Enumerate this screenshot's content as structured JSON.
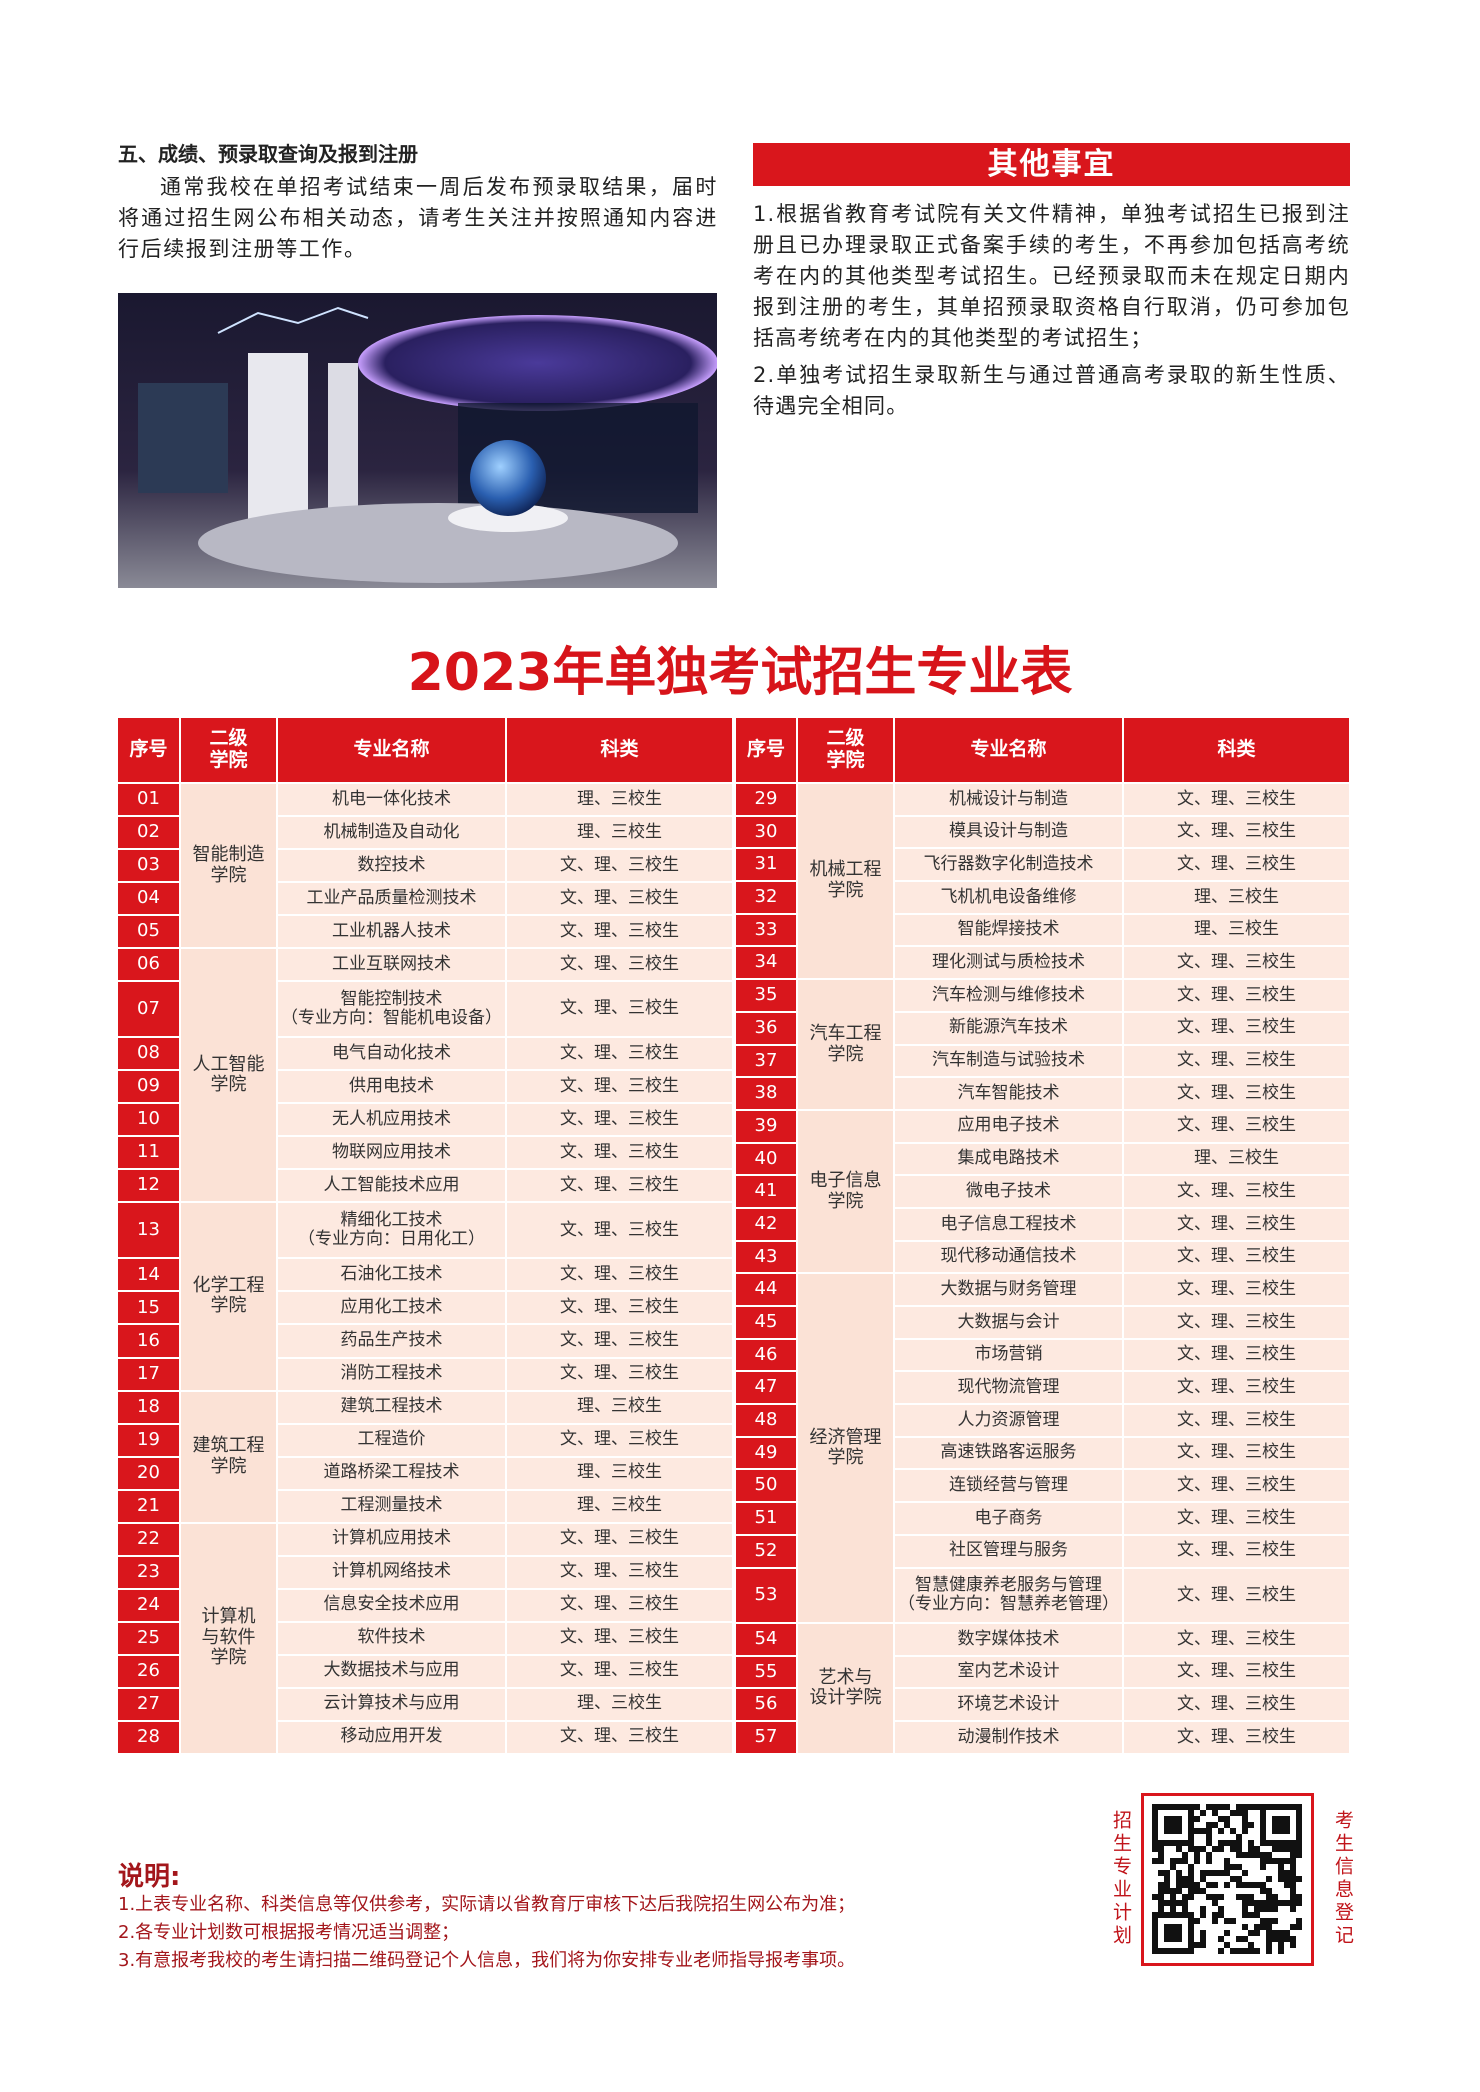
{
  "section5": {
    "title": "五、成绩、预录取查询及报到注册",
    "paragraph": "通常我校在单招考试结束一周后发布预录取结果，届时将通过招生网公布相关动态，请考生关注并按照通知内容进行后续报到注册等工作。"
  },
  "other": {
    "title": "其他事宜",
    "items": [
      "1.根据省教育考试院有关文件精神，单独考试招生已报到注册且已办理录取正式备案手续的考生，不再参加包括高考统考在内的其他类型考试招生。已经预录取而未在规定日期内报到注册的考生，其单招预录取资格自行取消，仍可参加包括高考统考在内的其他类型的考试招生；",
      "2.单独考试招生录取新生与通过普通高考录取的新生性质、待遇完全相同。"
    ]
  },
  "table": {
    "title": "2023年单独考试招生专业表",
    "headers": [
      "序号",
      "二级\n学院",
      "专业名称",
      "科类"
    ],
    "left": [
      {
        "college": "智能制造\n学院",
        "rows": [
          [
            "01",
            "机电一体化技术",
            "理、三校生"
          ],
          [
            "02",
            "机械制造及自动化",
            "理、三校生"
          ],
          [
            "03",
            "数控技术",
            "文、理、三校生"
          ],
          [
            "04",
            "工业产品质量检测技术",
            "文、理、三校生"
          ],
          [
            "05",
            "工业机器人技术",
            "文、理、三校生"
          ]
        ]
      },
      {
        "college": "人工智能\n学院",
        "rows": [
          [
            "06",
            "工业互联网技术",
            "文、理、三校生"
          ],
          [
            "07",
            "智能控制技术\n（专业方向：智能机电设备）",
            "文、理、三校生"
          ],
          [
            "08",
            "电气自动化技术",
            "文、理、三校生"
          ],
          [
            "09",
            "供用电技术",
            "文、理、三校生"
          ],
          [
            "10",
            "无人机应用技术",
            "文、理、三校生"
          ],
          [
            "11",
            "物联网应用技术",
            "文、理、三校生"
          ],
          [
            "12",
            "人工智能技术应用",
            "文、理、三校生"
          ]
        ]
      },
      {
        "college": "化学工程\n学院",
        "rows": [
          [
            "13",
            "精细化工技术\n（专业方向：日用化工）",
            "文、理、三校生"
          ],
          [
            "14",
            "石油化工技术",
            "文、理、三校生"
          ],
          [
            "15",
            "应用化工技术",
            "文、理、三校生"
          ],
          [
            "16",
            "药品生产技术",
            "文、理、三校生"
          ],
          [
            "17",
            "消防工程技术",
            "文、理、三校生"
          ]
        ]
      },
      {
        "college": "建筑工程\n学院",
        "rows": [
          [
            "18",
            "建筑工程技术",
            "理、三校生"
          ],
          [
            "19",
            "工程造价",
            "文、理、三校生"
          ],
          [
            "20",
            "道路桥梁工程技术",
            "理、三校生"
          ],
          [
            "21",
            "工程测量技术",
            "理、三校生"
          ]
        ]
      },
      {
        "college": "计算机\n与软件\n学院",
        "rows": [
          [
            "22",
            "计算机应用技术",
            "文、理、三校生"
          ],
          [
            "23",
            "计算机网络技术",
            "文、理、三校生"
          ],
          [
            "24",
            "信息安全技术应用",
            "文、理、三校生"
          ],
          [
            "25",
            "软件技术",
            "文、理、三校生"
          ],
          [
            "26",
            "大数据技术与应用",
            "文、理、三校生"
          ],
          [
            "27",
            "云计算技术与应用",
            "理、三校生"
          ],
          [
            "28",
            "移动应用开发",
            "文、理、三校生"
          ]
        ]
      }
    ],
    "right": [
      {
        "college": "机械工程\n学院",
        "rows": [
          [
            "29",
            "机械设计与制造",
            "文、理、三校生"
          ],
          [
            "30",
            "模具设计与制造",
            "文、理、三校生"
          ],
          [
            "31",
            "飞行器数字化制造技术",
            "文、理、三校生"
          ],
          [
            "32",
            "飞机机电设备维修",
            "理、三校生"
          ],
          [
            "33",
            "智能焊接技术",
            "理、三校生"
          ],
          [
            "34",
            "理化测试与质检技术",
            "文、理、三校生"
          ]
        ]
      },
      {
        "college": "汽车工程\n学院",
        "rows": [
          [
            "35",
            "汽车检测与维修技术",
            "文、理、三校生"
          ],
          [
            "36",
            "新能源汽车技术",
            "文、理、三校生"
          ],
          [
            "37",
            "汽车制造与试验技术",
            "文、理、三校生"
          ],
          [
            "38",
            "汽车智能技术",
            "文、理、三校生"
          ]
        ]
      },
      {
        "college": "电子信息\n学院",
        "rows": [
          [
            "39",
            "应用电子技术",
            "文、理、三校生"
          ],
          [
            "40",
            "集成电路技术",
            "理、三校生"
          ],
          [
            "41",
            "微电子技术",
            "文、理、三校生"
          ],
          [
            "42",
            "电子信息工程技术",
            "文、理、三校生"
          ],
          [
            "43",
            "现代移动通信技术",
            "文、理、三校生"
          ]
        ]
      },
      {
        "college": "经济管理\n学院",
        "rows": [
          [
            "44",
            "大数据与财务管理",
            "文、理、三校生"
          ],
          [
            "45",
            "大数据与会计",
            "文、理、三校生"
          ],
          [
            "46",
            "市场营销",
            "文、理、三校生"
          ],
          [
            "47",
            "现代物流管理",
            "文、理、三校生"
          ],
          [
            "48",
            "人力资源管理",
            "文、理、三校生"
          ],
          [
            "49",
            "高速铁路客运服务",
            "文、理、三校生"
          ],
          [
            "50",
            "连锁经营与管理",
            "文、理、三校生"
          ],
          [
            "51",
            "电子商务",
            "文、理、三校生"
          ],
          [
            "52",
            "社区管理与服务",
            "文、理、三校生"
          ],
          [
            "53",
            "智慧健康养老服务与管理\n（专业方向：智慧养老管理）",
            "文、理、三校生"
          ]
        ]
      },
      {
        "college": "艺术与\n设计学院",
        "rows": [
          [
            "54",
            "数字媒体技术",
            "文、理、三校生"
          ],
          [
            "55",
            "室内艺术设计",
            "文、理、三校生"
          ],
          [
            "56",
            "环境艺术设计",
            "文、理、三校生"
          ],
          [
            "57",
            "动漫制作技术",
            "文、理、三校生"
          ]
        ]
      }
    ]
  },
  "notes": {
    "title": "说明:",
    "items": [
      "1.上表专业名称、科类信息等仅供参考，实际请以省教育厅审核下达后我院招生网公布为准；",
      "2.各专业计划数可根据报考情况适当调整；",
      "3.有意报考我校的考生请扫描二维码登记个人信息，我们将为你安排专业老师指导报考事项。"
    ]
  },
  "qr": {
    "left_label": "招生专业计划",
    "right_label": "考生信息登记"
  }
}
